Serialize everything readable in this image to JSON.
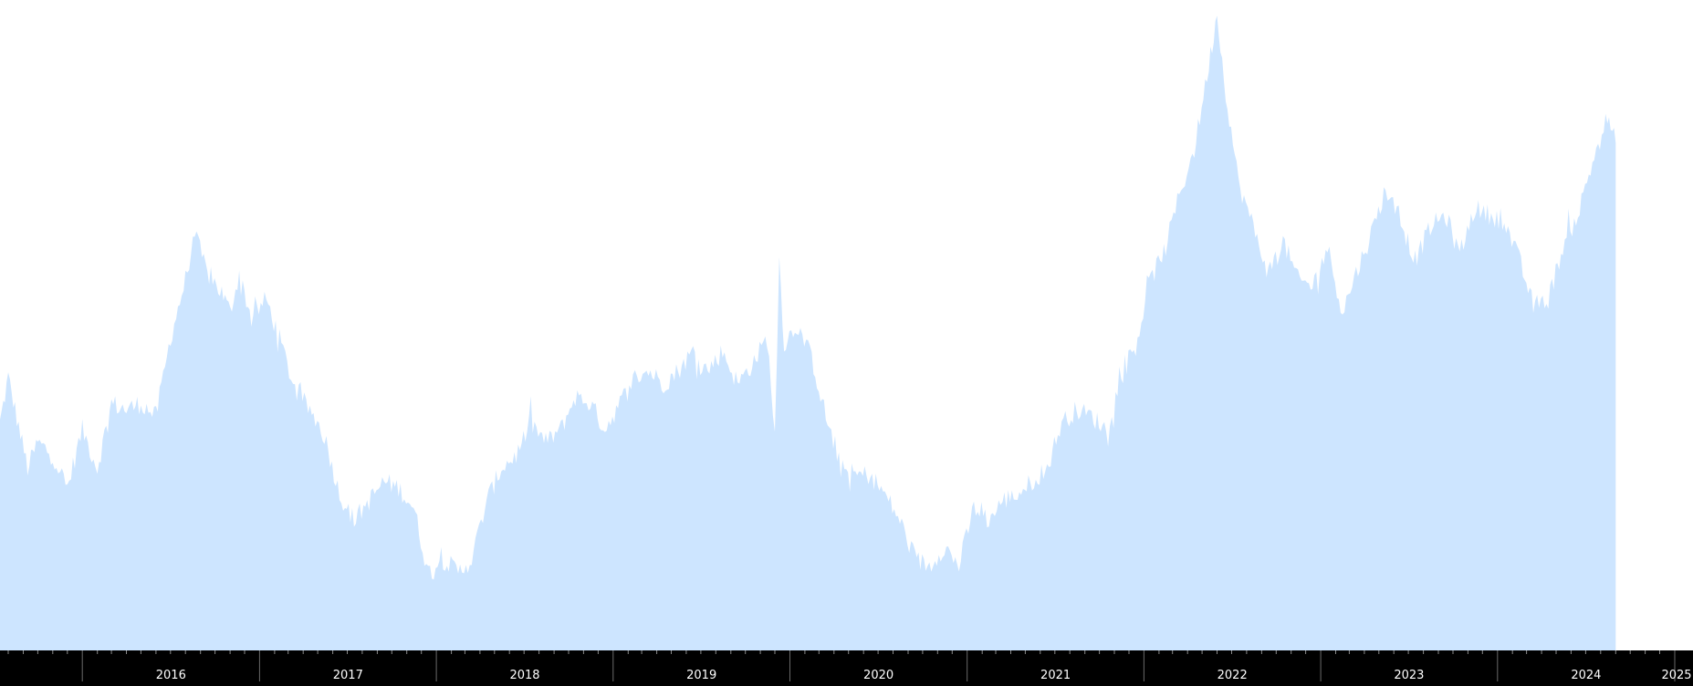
{
  "chart_data": {
    "type": "area",
    "x_axis_labels": [
      "2016",
      "2017",
      "2018",
      "2019",
      "2020",
      "2021",
      "2022",
      "2023",
      "2024",
      "2025"
    ],
    "xlim": [
      "2015-07-15",
      "2025-01-01"
    ],
    "ylim": [
      0,
      100
    ],
    "grid": false,
    "series": [
      {
        "points": [
          [
            "2015-07-15",
            35
          ],
          [
            "2015-08-01",
            42
          ],
          [
            "2015-08-15",
            37
          ],
          [
            "2015-09-10",
            28
          ],
          [
            "2015-10-01",
            32
          ],
          [
            "2015-11-01",
            30
          ],
          [
            "2015-12-01",
            25
          ],
          [
            "2016-01-01",
            34
          ],
          [
            "2016-02-01",
            28
          ],
          [
            "2016-03-01",
            38
          ],
          [
            "2016-04-01",
            37
          ],
          [
            "2016-05-01",
            38
          ],
          [
            "2016-06-01",
            36
          ],
          [
            "2016-07-01",
            48
          ],
          [
            "2016-08-01",
            57
          ],
          [
            "2016-08-20",
            64
          ],
          [
            "2016-09-15",
            58
          ],
          [
            "2016-10-15",
            55
          ],
          [
            "2016-11-01",
            52
          ],
          [
            "2016-11-20",
            58
          ],
          [
            "2016-12-15",
            51
          ],
          [
            "2017-01-15",
            54
          ],
          [
            "2017-02-15",
            47
          ],
          [
            "2017-03-15",
            40
          ],
          [
            "2017-04-15",
            37
          ],
          [
            "2017-05-15",
            33
          ],
          [
            "2017-06-15",
            24
          ],
          [
            "2017-07-15",
            20
          ],
          [
            "2017-08-15",
            23
          ],
          [
            "2017-09-15",
            26
          ],
          [
            "2017-10-15",
            25
          ],
          [
            "2017-11-15",
            22
          ],
          [
            "2017-12-15",
            12
          ],
          [
            "2018-01-15",
            14
          ],
          [
            "2018-02-15",
            12
          ],
          [
            "2018-03-15",
            14
          ],
          [
            "2018-04-15",
            23
          ],
          [
            "2018-05-15",
            28
          ],
          [
            "2018-06-15",
            30
          ],
          [
            "2018-07-15",
            35
          ],
          [
            "2018-08-15",
            32
          ],
          [
            "2018-09-15",
            34
          ],
          [
            "2018-10-15",
            39
          ],
          [
            "2018-11-15",
            38
          ],
          [
            "2018-12-15",
            34
          ],
          [
            "2019-01-15",
            38
          ],
          [
            "2019-02-15",
            42
          ],
          [
            "2019-03-15",
            43
          ],
          [
            "2019-04-15",
            41
          ],
          [
            "2019-05-15",
            43
          ],
          [
            "2019-06-15",
            46
          ],
          [
            "2019-07-15",
            43
          ],
          [
            "2019-08-15",
            46
          ],
          [
            "2019-09-15",
            41
          ],
          [
            "2019-10-15",
            44
          ],
          [
            "2019-11-15",
            48
          ],
          [
            "2019-12-01",
            33
          ],
          [
            "2019-12-10",
            60
          ],
          [
            "2019-12-20",
            47
          ],
          [
            "2020-01-15",
            50
          ],
          [
            "2020-02-15",
            45
          ],
          [
            "2020-03-15",
            36
          ],
          [
            "2020-04-15",
            28
          ],
          [
            "2020-05-15",
            27
          ],
          [
            "2020-06-15",
            27
          ],
          [
            "2020-07-15",
            24
          ],
          [
            "2020-08-15",
            20
          ],
          [
            "2020-09-15",
            14
          ],
          [
            "2020-10-15",
            13
          ],
          [
            "2020-11-15",
            16
          ],
          [
            "2020-12-15",
            13
          ],
          [
            "2021-01-15",
            22
          ],
          [
            "2021-02-15",
            20
          ],
          [
            "2021-03-15",
            23
          ],
          [
            "2021-04-15",
            24
          ],
          [
            "2021-05-15",
            26
          ],
          [
            "2021-06-15",
            28
          ],
          [
            "2021-07-15",
            35
          ],
          [
            "2021-08-15",
            37
          ],
          [
            "2021-09-15",
            36
          ],
          [
            "2021-10-15",
            34
          ],
          [
            "2021-11-15",
            42
          ],
          [
            "2021-12-15",
            47
          ],
          [
            "2022-01-15",
            57
          ],
          [
            "2022-02-15",
            62
          ],
          [
            "2022-03-15",
            70
          ],
          [
            "2022-04-15",
            77
          ],
          [
            "2022-05-15",
            90
          ],
          [
            "2022-06-01",
            98
          ],
          [
            "2022-06-15",
            88
          ],
          [
            "2022-07-15",
            72
          ],
          [
            "2022-08-15",
            65
          ],
          [
            "2022-09-15",
            58
          ],
          [
            "2022-10-15",
            63
          ],
          [
            "2022-11-15",
            57
          ],
          [
            "2022-12-15",
            56
          ],
          [
            "2023-01-15",
            62
          ],
          [
            "2023-02-15",
            52
          ],
          [
            "2023-03-15",
            58
          ],
          [
            "2023-04-15",
            64
          ],
          [
            "2023-05-15",
            71
          ],
          [
            "2023-06-15",
            66
          ],
          [
            "2023-07-15",
            60
          ],
          [
            "2023-08-15",
            65
          ],
          [
            "2023-09-15",
            67
          ],
          [
            "2023-10-15",
            61
          ],
          [
            "2023-11-15",
            68
          ],
          [
            "2023-12-15",
            67
          ],
          [
            "2024-01-15",
            66
          ],
          [
            "2024-02-15",
            60
          ],
          [
            "2024-03-15",
            53
          ],
          [
            "2024-04-15",
            54
          ],
          [
            "2024-05-15",
            62
          ],
          [
            "2024-06-15",
            67
          ],
          [
            "2024-07-15",
            75
          ],
          [
            "2024-08-15",
            82
          ],
          [
            "2024-09-01",
            78
          ]
        ]
      }
    ],
    "colors": {
      "fill": "#cde5ff",
      "axis_bar": "#000000",
      "axis_text": "#ffffff",
      "tick": "#8a8a8a"
    }
  }
}
